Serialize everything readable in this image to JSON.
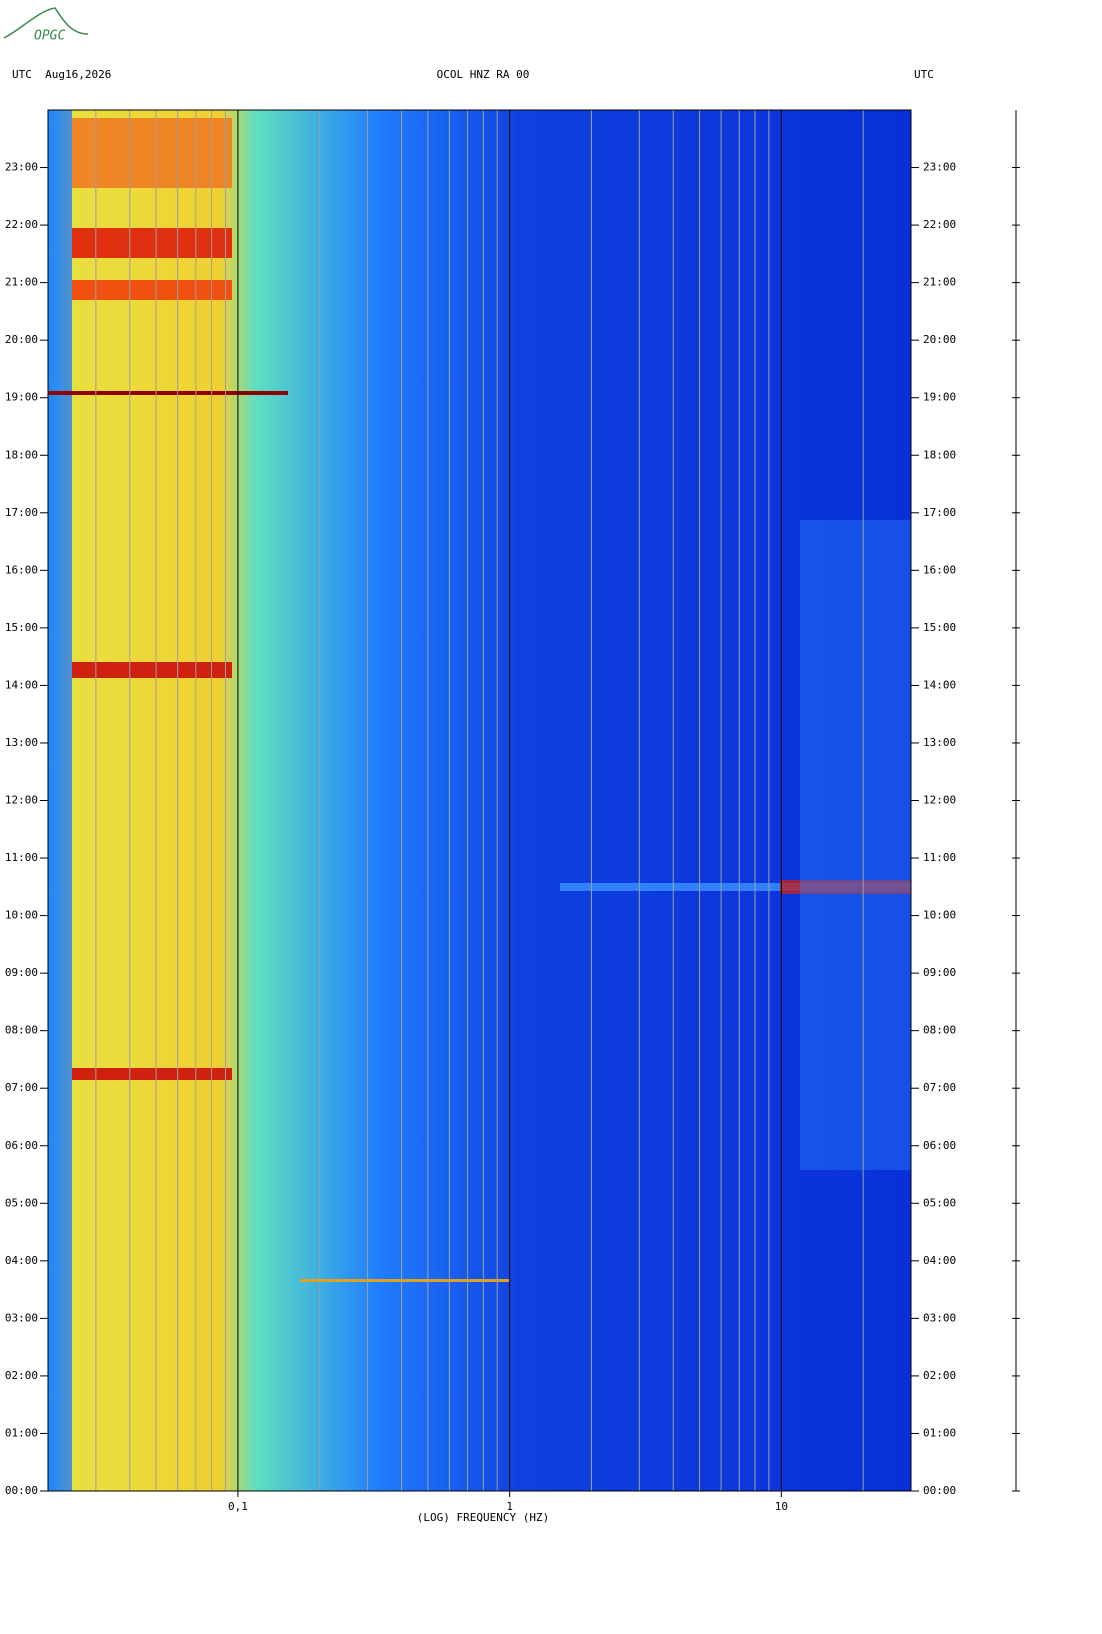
{
  "logo": "OPGC",
  "chart_data": {
    "type": "spectrogram",
    "title": "OCOL HNZ RA 00",
    "date_label": "UTC  Aug16,2026",
    "right_label": "UTC",
    "xlabel": "(LOG) FREQUENCY (HZ)",
    "xscale": "log",
    "xlim": [
      0.02,
      30
    ],
    "xticks": [
      {
        "value": 0.1,
        "label": "0,1"
      },
      1,
      10
    ],
    "xgrid": [
      0.02,
      0.03,
      0.04,
      0.05,
      0.06,
      0.07,
      0.08,
      0.09,
      0.2,
      0.3,
      0.4,
      0.5,
      0.6,
      0.7,
      0.8,
      0.9,
      2,
      3,
      4,
      5,
      6,
      7,
      8,
      9,
      20,
      30
    ],
    "ylim": [
      0,
      24
    ],
    "yticks": [
      {
        "value": 0,
        "label": "00:00"
      },
      {
        "value": 1,
        "label": "01:00"
      },
      {
        "value": 2,
        "label": "02:00"
      },
      {
        "value": 3,
        "label": "03:00"
      },
      {
        "value": 4,
        "label": "04:00"
      },
      {
        "value": 5,
        "label": "05:00"
      },
      {
        "value": 6,
        "label": "06:00"
      },
      {
        "value": 7,
        "label": "07:00"
      },
      {
        "value": 8,
        "label": "08:00"
      },
      {
        "value": 9,
        "label": "09:00"
      },
      {
        "value": 10,
        "label": "10:00"
      },
      {
        "value": 11,
        "label": "11:00"
      },
      {
        "value": 12,
        "label": "12:00"
      },
      {
        "value": 13,
        "label": "13:00"
      },
      {
        "value": 14,
        "label": "14:00"
      },
      {
        "value": 15,
        "label": "15:00"
      },
      {
        "value": 16,
        "label": "16:00"
      },
      {
        "value": 17,
        "label": "17:00"
      },
      {
        "value": 18,
        "label": "18:00"
      },
      {
        "value": 19,
        "label": "19:00"
      },
      {
        "value": 20,
        "label": "20:00"
      },
      {
        "value": 21,
        "label": "21:00"
      },
      {
        "value": 22,
        "label": "22:00"
      },
      {
        "value": 23,
        "label": "23:00"
      }
    ],
    "grid_color": "#a0a0a0"
  }
}
